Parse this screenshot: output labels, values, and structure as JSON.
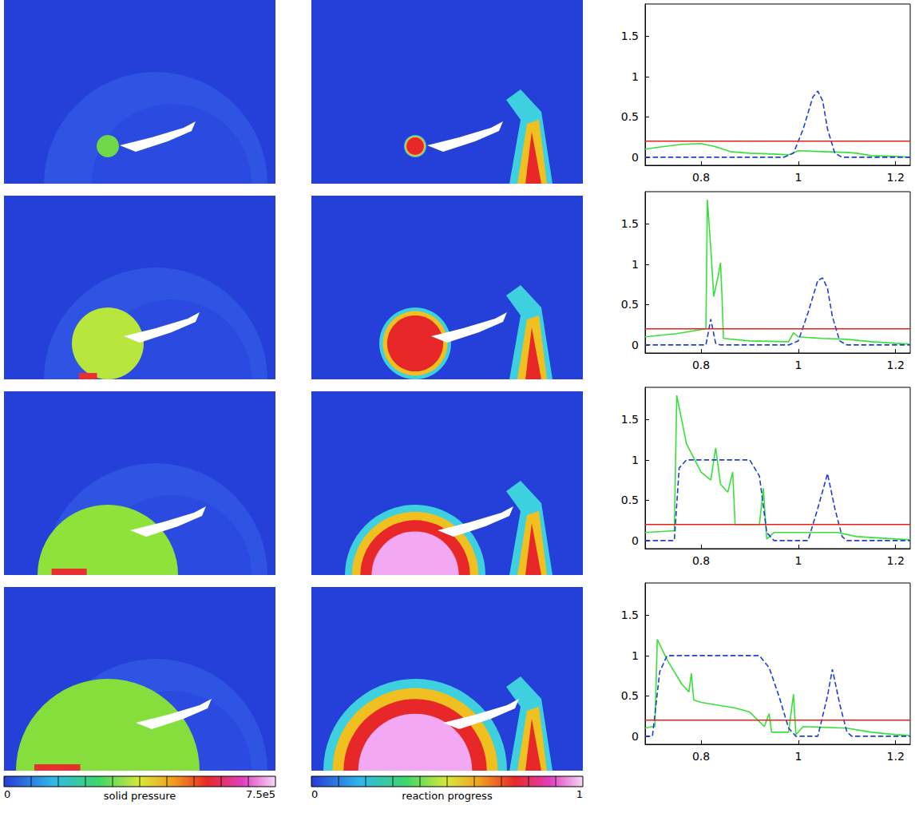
{
  "chart_data": [
    {
      "type": "line",
      "xlim": [
        0.685,
        1.23
      ],
      "xticks": [
        0.8,
        1,
        1.2
      ],
      "ylim": [
        -0.1,
        1.9
      ],
      "yticks": [
        0,
        0.5,
        1,
        1.5
      ],
      "series": [
        {
          "color": "#38e038",
          "line_style": "solid",
          "x": [
            0.685,
            0.72,
            0.76,
            0.8,
            0.83,
            0.86,
            0.9,
            0.95,
            0.98,
            1.0,
            1.05,
            1.1,
            1.12,
            1.15,
            1.2,
            1.23
          ],
          "values": [
            0.1,
            0.13,
            0.16,
            0.17,
            0.13,
            0.07,
            0.05,
            0.04,
            0.03,
            0.08,
            0.07,
            0.06,
            0.05,
            0.02,
            0.01,
            0.0
          ]
        },
        {
          "color": "#1f3fd1",
          "line_style": "dashed",
          "x": [
            0.685,
            0.97,
            0.99,
            1.01,
            1.03,
            1.04,
            1.05,
            1.06,
            1.075,
            1.09,
            1.23
          ],
          "values": [
            0,
            0,
            0.05,
            0.35,
            0.75,
            0.82,
            0.7,
            0.35,
            0.05,
            0,
            0
          ]
        },
        {
          "color": "#e8221a",
          "line_style": "solid",
          "x": [
            0.685,
            1.23
          ],
          "values": [
            0.2,
            0.2
          ]
        }
      ]
    },
    {
      "type": "line",
      "xlim": [
        0.685,
        1.23
      ],
      "xticks": [
        0.8,
        1,
        1.2
      ],
      "ylim": [
        -0.1,
        1.9
      ],
      "yticks": [
        0,
        0.5,
        1,
        1.5
      ],
      "series": [
        {
          "color": "#38e038",
          "line_style": "solid",
          "x": [
            0.685,
            0.75,
            0.8,
            0.81,
            0.813,
            0.82,
            0.826,
            0.835,
            0.84,
            0.843,
            0.846,
            0.9,
            0.98,
            0.99,
            1.0,
            1.05,
            1.1,
            1.15,
            1.2,
            1.23
          ],
          "values": [
            0.1,
            0.14,
            0.19,
            0.2,
            1.8,
            1.2,
            0.6,
            0.85,
            1.02,
            0.6,
            0.08,
            0.05,
            0.04,
            0.15,
            0.1,
            0.08,
            0.07,
            0.04,
            0.02,
            0.01
          ]
        },
        {
          "color": "#1f3fd1",
          "line_style": "dashed",
          "x": [
            0.685,
            0.81,
            0.82,
            0.83,
            0.84,
            0.98,
            1.0,
            1.02,
            1.04,
            1.05,
            1.06,
            1.07,
            1.085,
            1.1,
            1.23
          ],
          "values": [
            0,
            0,
            0.32,
            0.02,
            0,
            0,
            0.05,
            0.4,
            0.8,
            0.83,
            0.7,
            0.35,
            0.05,
            0,
            0
          ]
        },
        {
          "color": "#e8221a",
          "line_style": "solid",
          "x": [
            0.685,
            1.23
          ],
          "values": [
            0.2,
            0.2
          ]
        }
      ]
    },
    {
      "type": "line",
      "xlim": [
        0.685,
        1.23
      ],
      "xticks": [
        0.8,
        1,
        1.2
      ],
      "ylim": [
        -0.1,
        1.9
      ],
      "yticks": [
        0,
        0.5,
        1,
        1.5
      ],
      "series": [
        {
          "color": "#38e038",
          "line_style": "solid",
          "x": [
            0.685,
            0.74,
            0.745,
            0.75,
            0.77,
            0.8,
            0.82,
            0.83,
            0.84,
            0.855,
            0.865,
            0.87,
            0.92,
            0.928,
            0.935,
            0.95,
            1.08,
            1.12,
            1.2,
            1.23
          ],
          "values": [
            0.1,
            0.12,
            0.12,
            1.8,
            1.2,
            0.85,
            0.75,
            1.15,
            0.7,
            0.6,
            0.85,
            0.2,
            0.2,
            0.65,
            0.02,
            0.1,
            0.1,
            0.05,
            0.02,
            0.01
          ]
        },
        {
          "color": "#1f3fd1",
          "line_style": "dashed",
          "x": [
            0.685,
            0.745,
            0.755,
            0.77,
            0.9,
            0.92,
            0.935,
            0.95,
            1.02,
            1.04,
            1.06,
            1.075,
            1.09,
            1.1,
            1.23
          ],
          "values": [
            0,
            0,
            0.9,
            1,
            1,
            0.8,
            0.1,
            0,
            0,
            0.4,
            0.83,
            0.4,
            0.05,
            0,
            0
          ]
        },
        {
          "color": "#e8221a",
          "line_style": "solid",
          "x": [
            0.685,
            1.23
          ],
          "values": [
            0.2,
            0.2
          ]
        }
      ]
    },
    {
      "type": "line",
      "xlim": [
        0.685,
        1.23
      ],
      "xticks": [
        0.8,
        1,
        1.2
      ],
      "ylim": [
        -0.1,
        1.9
      ],
      "yticks": [
        0,
        0.5,
        1,
        1.5
      ],
      "series": [
        {
          "color": "#38e038",
          "line_style": "solid",
          "x": [
            0.685,
            0.7,
            0.705,
            0.71,
            0.73,
            0.76,
            0.775,
            0.78,
            0.785,
            0.8,
            0.82,
            0.87,
            0.9,
            0.93,
            0.94,
            0.945,
            0.98,
            0.99,
            0.995,
            1.01,
            1.1,
            1.15,
            1.2,
            1.23
          ],
          "values": [
            0.1,
            0.12,
            0.12,
            1.2,
            0.95,
            0.65,
            0.55,
            0.78,
            0.45,
            0.42,
            0.4,
            0.35,
            0.3,
            0.12,
            0.28,
            0.05,
            0.05,
            0.52,
            0.02,
            0.12,
            0.1,
            0.05,
            0.02,
            0.01
          ]
        },
        {
          "color": "#1f3fd1",
          "line_style": "dashed",
          "x": [
            0.685,
            0.7,
            0.715,
            0.73,
            0.92,
            0.94,
            0.96,
            0.98,
            0.995,
            1.04,
            1.06,
            1.07,
            1.085,
            1.1,
            1.11,
            1.23
          ],
          "values": [
            0,
            0,
            0.8,
            1,
            1,
            0.85,
            0.5,
            0.1,
            0,
            0,
            0.5,
            0.83,
            0.4,
            0.05,
            0,
            0
          ]
        },
        {
          "color": "#e8221a",
          "line_style": "solid",
          "x": [
            0.685,
            1.23
          ],
          "values": [
            0.2,
            0.2
          ]
        }
      ]
    }
  ],
  "colorbars": [
    {
      "label": "solid pressure",
      "range": [
        0,
        750000
      ],
      "ticks": [
        0,
        {
          "value": 750000,
          "label": "7.5e5"
        }
      ]
    },
    {
      "label": "reaction progress",
      "range": [
        0,
        1
      ],
      "ticks": [
        0,
        1
      ]
    }
  ]
}
